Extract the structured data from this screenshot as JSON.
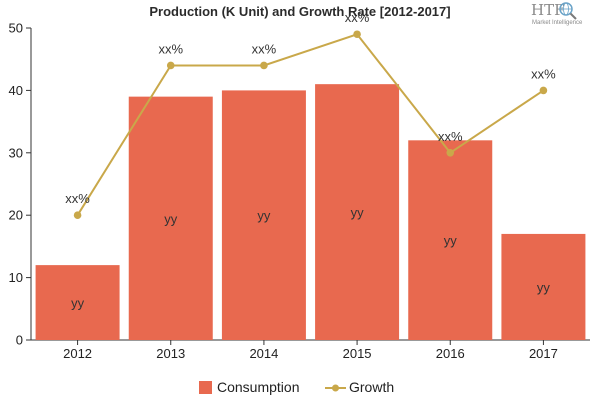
{
  "chart_data": {
    "type": "bar",
    "title": "Production (K Unit) and Growth Rate [2012-2017]",
    "categories": [
      "2012",
      "2013",
      "2014",
      "2015",
      "2016",
      "2017"
    ],
    "ylim": [
      0,
      50
    ],
    "yticks": [
      0,
      10,
      20,
      30,
      40,
      50
    ],
    "grid": false,
    "legend_position": "bottom-center",
    "series": [
      {
        "name": "Consumption",
        "type": "bar",
        "color": "#e8694f",
        "values": [
          12,
          39,
          40,
          41,
          32,
          17
        ],
        "data_labels": [
          "yy",
          "yy",
          "yy",
          "yy",
          "yy",
          "yy"
        ]
      },
      {
        "name": "Growth",
        "type": "line",
        "color": "#c9a84a",
        "values": [
          20,
          44,
          44,
          49,
          30,
          40
        ],
        "data_labels": [
          "xx%",
          "xx%",
          "xx%",
          "xx%",
          "xx%",
          "xx%"
        ]
      }
    ]
  },
  "logo": {
    "text": "HTF",
    "subtext": "Market Intelligence",
    "icon": "globe-magnifier-icon"
  }
}
